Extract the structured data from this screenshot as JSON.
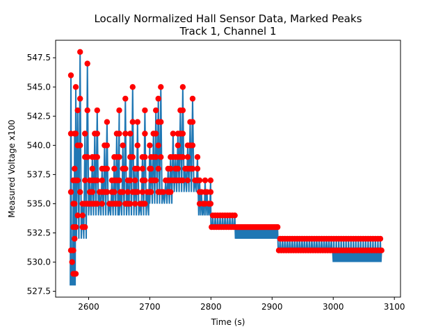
{
  "chart_data": {
    "type": "line",
    "title_line1": "Locally Normalized Hall Sensor Data, Marked Peaks",
    "title_line2": "Track 1, Channel 1",
    "xlabel": "Time (s)",
    "ylabel": "Measured Voltage x100",
    "xlim": [
      2546,
      3110
    ],
    "ylim": [
      527.0,
      549.0
    ],
    "xticks": [
      2600,
      2700,
      2800,
      2900,
      3000,
      3100
    ],
    "xtick_labels": [
      "2600",
      "2700",
      "2800",
      "2900",
      "3000",
      "3100"
    ],
    "yticks": [
      527.5,
      530.0,
      532.5,
      535.0,
      537.5,
      540.0,
      542.5,
      545.0,
      547.5
    ],
    "ytick_labels": [
      "527.5",
      "530.0",
      "532.5",
      "535.0",
      "537.5",
      "540.0",
      "542.5",
      "545.0",
      "547.5"
    ],
    "series": [
      {
        "kind": "signal",
        "color": "#1f77b4"
      },
      {
        "kind": "peaks",
        "color": "#ff0000"
      }
    ],
    "segments": [
      {
        "x_start": 2570,
        "x_end": 2580,
        "period": 2,
        "peak_max": 546,
        "trough": 528,
        "levels": [
          546,
          545,
          543,
          541,
          539,
          537,
          534,
          530,
          529
        ]
      },
      {
        "x_start": 2580,
        "x_end": 2600,
        "period": 4,
        "peak_max": 548,
        "trough": 532,
        "levels": [
          548,
          547,
          545,
          543,
          541,
          539,
          537,
          535,
          533,
          532
        ]
      },
      {
        "x_start": 2600,
        "x_end": 2650,
        "period": 4,
        "peak_max": 543,
        "trough": 534,
        "levels": [
          543,
          542,
          541,
          540,
          539,
          538,
          537,
          536,
          535
        ]
      },
      {
        "x_start": 2650,
        "x_end": 2700,
        "period": 4,
        "peak_max": 545,
        "trough": 534,
        "levels": [
          545,
          544,
          543,
          542,
          541,
          540,
          539,
          538,
          537,
          536,
          535
        ]
      },
      {
        "x_start": 2700,
        "x_end": 2740,
        "period": 4,
        "peak_max": 545,
        "trough": 535,
        "levels": [
          545,
          544,
          543,
          541,
          539,
          538,
          537,
          536
        ]
      },
      {
        "x_start": 2740,
        "x_end": 2780,
        "period": 4,
        "peak_max": 545,
        "trough": 536,
        "levels": [
          545,
          544,
          543,
          542,
          541,
          540,
          539,
          538,
          537
        ]
      },
      {
        "x_start": 2780,
        "x_end": 2800,
        "period": 3,
        "peak_max": 537,
        "trough": 534,
        "levels": [
          537,
          536,
          535
        ]
      },
      {
        "x_start": 2800,
        "x_end": 2840,
        "period": 2,
        "peak_max": 534,
        "trough": 533,
        "levels": [
          534,
          533
        ]
      },
      {
        "x_start": 2840,
        "x_end": 2910,
        "period": 2,
        "peak_max": 533,
        "trough": 532,
        "levels": [
          533
        ]
      },
      {
        "x_start": 2910,
        "x_end": 3000,
        "period": 2,
        "peak_max": 532,
        "trough": 531,
        "levels": [
          532,
          531
        ]
      },
      {
        "x_start": 3000,
        "x_end": 3080,
        "period": 2,
        "peak_max": 532,
        "trough": 530,
        "levels": [
          532,
          531
        ]
      }
    ]
  }
}
